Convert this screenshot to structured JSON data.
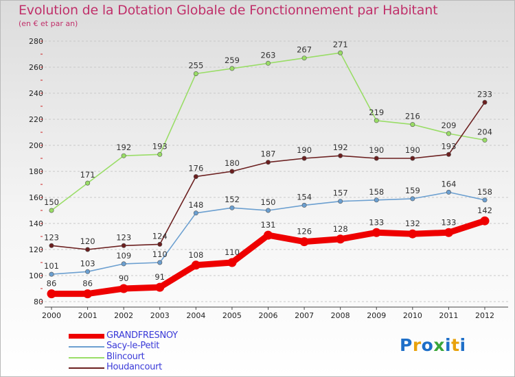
{
  "title": "Evolution de la Dotation Globale de Fonctionnement par Habitant",
  "subtitle": "(en € et par an)",
  "logo": {
    "text": "Proxiti",
    "colors": [
      "#1e6fc8",
      "#e8a20c",
      "#1e6fc8",
      "#3aa63a",
      "#1e6fc8",
      "#e8a20c",
      "#1e6fc8"
    ]
  },
  "chart_data": {
    "type": "line",
    "title": "Evolution de la Dotation Globale de Fonctionnement par Habitant",
    "subtitle": "(en € et par an)",
    "xlabel": "",
    "ylabel": "",
    "ylim": [
      80,
      280
    ],
    "yticks": [
      80,
      100,
      120,
      140,
      160,
      180,
      200,
      220,
      240,
      260,
      280
    ],
    "grid": "horizontal",
    "legend_position": "bottom-left",
    "categories": [
      "2000",
      "2001",
      "2002",
      "2003",
      "2004",
      "2005",
      "2006",
      "2007",
      "2008",
      "2009",
      "2010",
      "2011",
      "2012"
    ],
    "series": [
      {
        "name": "GRANDFRESNOY",
        "color": "#ee0000",
        "style": "thick",
        "values": [
          86,
          86,
          90,
          91,
          108,
          110,
          131,
          126,
          128,
          133,
          132,
          133,
          142
        ]
      },
      {
        "name": "Sacy-le-Petit",
        "color": "#6b9fd0",
        "style": "thin",
        "values": [
          101,
          103,
          109,
          110,
          148,
          152,
          150,
          154,
          157,
          158,
          159,
          164,
          158
        ]
      },
      {
        "name": "Blincourt",
        "color": "#99dd66",
        "style": "thin",
        "values": [
          150,
          171,
          192,
          193,
          255,
          259,
          263,
          267,
          271,
          219,
          216,
          209,
          204
        ]
      },
      {
        "name": "Houdancourt",
        "color": "#6b1f1f",
        "style": "thin",
        "values": [
          123,
          120,
          123,
          124,
          176,
          180,
          187,
          190,
          192,
          190,
          190,
          193,
          233
        ]
      }
    ]
  }
}
